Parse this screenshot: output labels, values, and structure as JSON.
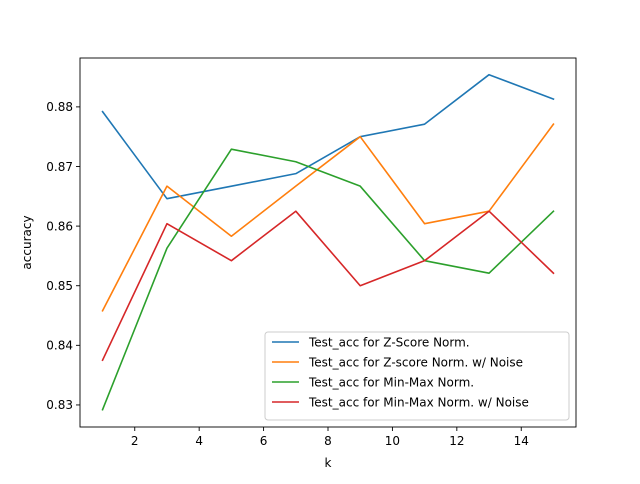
{
  "chart_data": {
    "type": "line",
    "title": "",
    "xlabel": "k",
    "ylabel": "accuracy",
    "xlim": [
      0.3,
      15.7
    ],
    "ylim": [
      0.8263,
      0.8882
    ],
    "xticks": [
      2,
      4,
      6,
      8,
      10,
      12,
      14
    ],
    "xtick_labels": [
      "2",
      "4",
      "6",
      "8",
      "10",
      "12",
      "14"
    ],
    "yticks": [
      0.83,
      0.84,
      0.85,
      0.86,
      0.87,
      0.88
    ],
    "ytick_labels": [
      "0.83",
      "0.84",
      "0.85",
      "0.86",
      "0.87",
      "0.88"
    ],
    "grid": false,
    "legend_position": "bottom-right",
    "x": [
      1,
      3,
      5,
      7,
      9,
      11,
      13,
      15
    ],
    "series": [
      {
        "name": "Test_acc for Z-Score Norm.",
        "color": "#1f77b4",
        "values": [
          0.8792,
          0.8646,
          0.8667,
          0.8688,
          0.875,
          0.8771,
          0.8854,
          0.8813
        ]
      },
      {
        "name": "Test_acc for Z-score Norm. w/ Noise",
        "color": "#ff7f0e",
        "values": [
          0.8458,
          0.8667,
          0.8583,
          0.8667,
          0.875,
          0.8604,
          0.8625,
          0.8771
        ]
      },
      {
        "name": "Test_acc for Min-Max Norm.",
        "color": "#2ca02c",
        "values": [
          0.8292,
          0.8563,
          0.8729,
          0.8708,
          0.8667,
          0.8542,
          0.8521,
          0.8625
        ]
      },
      {
        "name": "Test_acc for Min-Max Norm. w/ Noise",
        "color": "#d62728",
        "values": [
          0.8375,
          0.8604,
          0.8542,
          0.8625,
          0.85,
          0.8542,
          0.8625,
          0.8521
        ]
      }
    ]
  }
}
